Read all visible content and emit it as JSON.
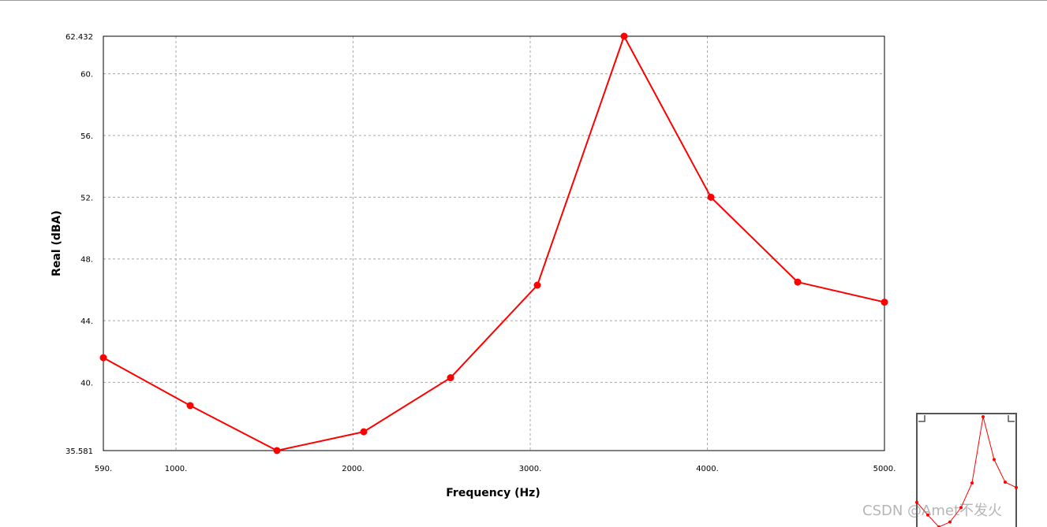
{
  "chart_data": {
    "type": "line",
    "title": "",
    "xlabel": "Frequency (Hz)",
    "ylabel": "Real (dBA)",
    "xlim": [
      590,
      5000
    ],
    "ylim": [
      35.581,
      62.432
    ],
    "x_ticks": [
      {
        "value": 590,
        "label": "590."
      },
      {
        "value": 1000,
        "label": "1000."
      },
      {
        "value": 2000,
        "label": "2000."
      },
      {
        "value": 3000,
        "label": "3000."
      },
      {
        "value": 4000,
        "label": "4000."
      },
      {
        "value": 5000,
        "label": "5000."
      }
    ],
    "y_ticks": [
      {
        "value": 35.581,
        "label": "35.581"
      },
      {
        "value": 40,
        "label": "40."
      },
      {
        "value": 44,
        "label": "44."
      },
      {
        "value": 48,
        "label": "48."
      },
      {
        "value": 52,
        "label": "52."
      },
      {
        "value": 56,
        "label": "56."
      },
      {
        "value": 60,
        "label": "60."
      },
      {
        "value": 62.432,
        "label": "62.432"
      }
    ],
    "grid": true,
    "series": [
      {
        "color": "#ff0000",
        "x": [
          590,
          1080,
          1570,
          2060,
          2550,
          3040,
          3530,
          4020,
          4510,
          5000
        ],
        "y": [
          41.6,
          38.5,
          35.581,
          36.8,
          40.3,
          46.3,
          62.432,
          52.0,
          46.5,
          45.2
        ]
      }
    ]
  },
  "overview": {
    "line_color": "#ff0000",
    "frame_color": "#555555"
  },
  "watermark": "CSDN @Amet不发火"
}
